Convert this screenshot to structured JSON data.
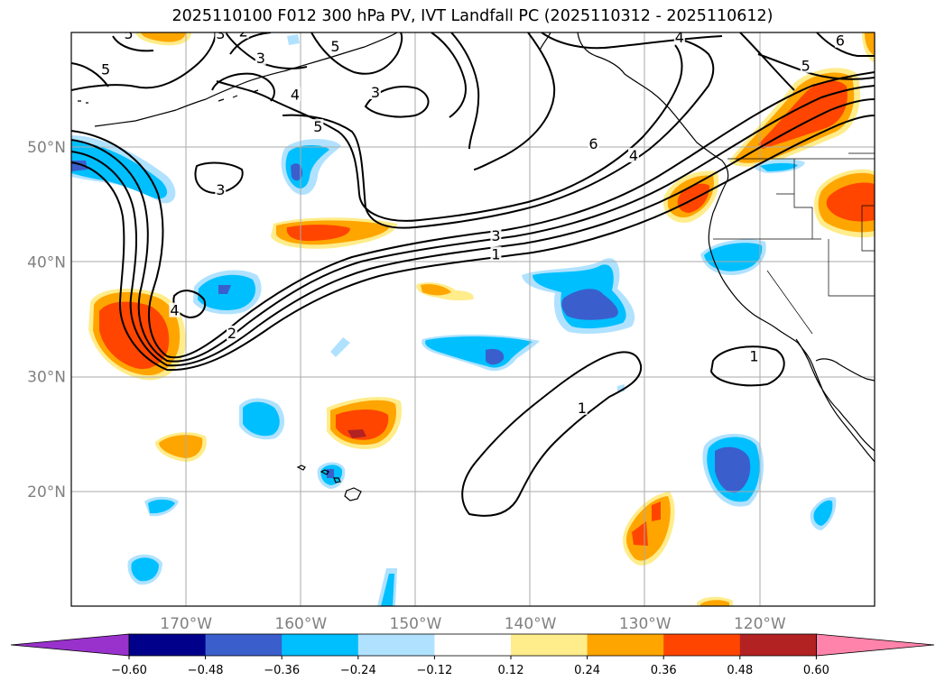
{
  "title": "2025110100 F012 300 hPa PV, IVT Landfall PC (2025110312 - 2025110612)",
  "map": {
    "lon_range": [
      -180,
      -110
    ],
    "lat_range": [
      10,
      60
    ],
    "lon_ticks": [
      {
        "value": -170,
        "label": "170°W"
      },
      {
        "value": -160,
        "label": "160°W"
      },
      {
        "value": -150,
        "label": "150°W"
      },
      {
        "value": -140,
        "label": "140°W"
      },
      {
        "value": -130,
        "label": "130°W"
      },
      {
        "value": -120,
        "label": "120°W"
      }
    ],
    "lat_ticks": [
      {
        "value": 50,
        "label": "50°N"
      },
      {
        "value": 40,
        "label": "40°N"
      },
      {
        "value": 30,
        "label": "30°N"
      },
      {
        "value": 20,
        "label": "20°N"
      }
    ],
    "gridlines": true
  },
  "colorbar": {
    "ticks": [
      "−0.60",
      "−0.48",
      "−0.36",
      "−0.24",
      "−0.12",
      "0.12",
      "0.24",
      "0.36",
      "0.48",
      "0.60"
    ],
    "colors": [
      "#9932cc",
      "#00008b",
      "#3a5fcd",
      "#00bfff",
      "#b0e2ff",
      "#ffffff",
      "#ffec8b",
      "#ffa500",
      "#ff4500",
      "#b22222",
      "#ff83aa"
    ]
  },
  "contour_labels": [
    {
      "text": "5",
      "lon": -175,
      "lat": 59.6
    },
    {
      "text": "3",
      "lon": -167,
      "lat": 59.6
    },
    {
      "text": "3",
      "lon": -163.5,
      "lat": 57.5
    },
    {
      "text": "2",
      "lon": -165,
      "lat": 59.8
    },
    {
      "text": "5",
      "lon": -157,
      "lat": 58.5
    },
    {
      "text": "3",
      "lon": -153.5,
      "lat": 54.5
    },
    {
      "text": "4",
      "lon": -160.5,
      "lat": 54.3
    },
    {
      "text": "5",
      "lon": -158.5,
      "lat": 51.5
    },
    {
      "text": "5",
      "lon": -177,
      "lat": 56.5
    },
    {
      "text": "3",
      "lon": -167,
      "lat": 46
    },
    {
      "text": "4",
      "lon": -171,
      "lat": 35.5
    },
    {
      "text": "2",
      "lon": -166,
      "lat": 33.5
    },
    {
      "text": "3",
      "lon": -143,
      "lat": 42
    },
    {
      "text": "1",
      "lon": -143,
      "lat": 40.4
    },
    {
      "text": "6",
      "lon": -134.5,
      "lat": 50
    },
    {
      "text": "4",
      "lon": -131,
      "lat": 49
    },
    {
      "text": "4",
      "lon": -127,
      "lat": 59.3
    },
    {
      "text": "5",
      "lon": -116,
      "lat": 56.8
    },
    {
      "text": "6",
      "lon": -113,
      "lat": 59
    },
    {
      "text": "1",
      "lon": -135.5,
      "lat": 27
    },
    {
      "text": "1",
      "lon": -120.5,
      "lat": 31.5
    }
  ]
}
